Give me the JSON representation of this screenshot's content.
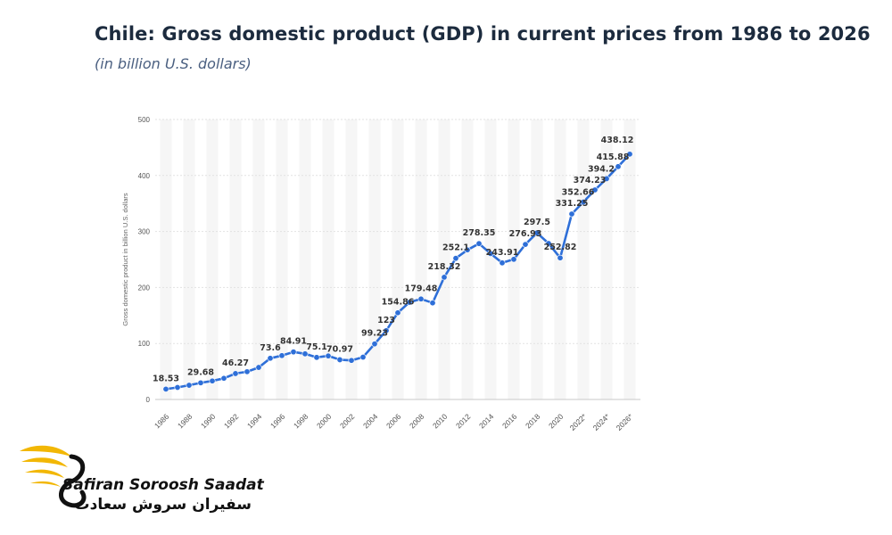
{
  "header": {
    "title": "Chile: Gross domestic product (GDP) in current prices from 1986 to 2026",
    "subtitle": "(in billion U.S. dollars)"
  },
  "logo": {
    "name_en": "Safiran Soroosh Saadat",
    "name_fa": "سفیران سروش سعادت",
    "accent_color": "#f2b705"
  },
  "chart_data": {
    "type": "line",
    "ylabel": "Gross domestic product in billion U.S. dollars",
    "xlabel": "",
    "ylim": [
      0,
      500
    ],
    "yticks": [
      0,
      100,
      200,
      300,
      400,
      500
    ],
    "xticks": [
      "1986",
      "1988",
      "1990",
      "1992",
      "1994",
      "1996",
      "1998",
      "2000",
      "2002",
      "2004",
      "2006",
      "2008",
      "2010",
      "2012",
      "2014",
      "2016",
      "2018",
      "2020",
      "2022*",
      "2024*",
      "2026*"
    ],
    "grid": true,
    "line_color": "#2e6fd8",
    "x": [
      1986,
      1987,
      1988,
      1989,
      1990,
      1991,
      1992,
      1993,
      1994,
      1995,
      1996,
      1997,
      1998,
      1999,
      2000,
      2001,
      2002,
      2003,
      2004,
      2005,
      2006,
      2007,
      2008,
      2009,
      2010,
      2011,
      2012,
      2013,
      2014,
      2015,
      2016,
      2017,
      2018,
      2019,
      2020,
      2021,
      2022,
      2023,
      2024,
      2025,
      2026
    ],
    "values": [
      18.53,
      21.5,
      25.4,
      29.68,
      33.1,
      37.8,
      46.27,
      49.6,
      57.2,
      73.6,
      78.4,
      84.91,
      81.5,
      75.1,
      77.8,
      70.97,
      69.7,
      75.6,
      99.23,
      123,
      154.86,
      173.5,
      179.48,
      172.4,
      218.32,
      252.1,
      267.1,
      278.35,
      260.5,
      243.91,
      250.3,
      276.93,
      297.5,
      278.6,
      252.82,
      331.25,
      352.66,
      374.23,
      394.2,
      415.88,
      438.12
    ],
    "data_labels": [
      {
        "x": 1986,
        "label": "18.53"
      },
      {
        "x": 1989,
        "label": "29.68"
      },
      {
        "x": 1992,
        "label": "46.27"
      },
      {
        "x": 1995,
        "label": "73.6"
      },
      {
        "x": 1997,
        "label": "84.91"
      },
      {
        "x": 1999,
        "label": "75.1"
      },
      {
        "x": 2001,
        "label": "70.97"
      },
      {
        "x": 2004,
        "label": "99.23"
      },
      {
        "x": 2005,
        "label": "123"
      },
      {
        "x": 2006,
        "label": "154.86"
      },
      {
        "x": 2008,
        "label": "179.48"
      },
      {
        "x": 2010,
        "label": "218.32"
      },
      {
        "x": 2011,
        "label": "252.1"
      },
      {
        "x": 2013,
        "label": "278.35"
      },
      {
        "x": 2015,
        "label": "243.91"
      },
      {
        "x": 2017,
        "label": "276.93"
      },
      {
        "x": 2018,
        "label": "297.5"
      },
      {
        "x": 2020,
        "label": "252.82"
      },
      {
        "x": 2021,
        "label": "331.25"
      },
      {
        "x": 2022,
        "label": "352.66"
      },
      {
        "x": 2023,
        "label": "374.23"
      },
      {
        "x": 2024,
        "label": "394.2"
      },
      {
        "x": 2025,
        "label": "415.88"
      },
      {
        "x": 2026,
        "label": "438.12"
      }
    ]
  }
}
